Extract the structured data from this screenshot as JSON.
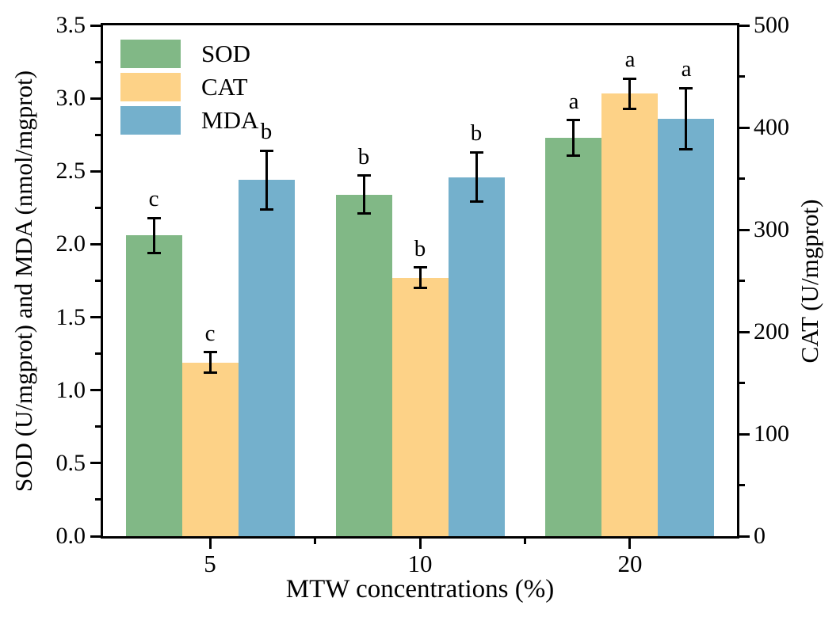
{
  "chart_data": {
    "type": "bar",
    "title": "",
    "categories": [
      "5",
      "10",
      "20"
    ],
    "xlabel": "MTW concentrations (%)",
    "ylabel_left": "SOD (U/mgprot) and MDA (nmol/mgprot)",
    "ylabel_right": "CAT (U/mgprot)",
    "ylim_left": [
      0,
      3.5
    ],
    "ylim_right": [
      0,
      500
    ],
    "yticks_left": [
      "0.0",
      "0.5",
      "1.0",
      "1.5",
      "2.0",
      "2.5",
      "3.0",
      "3.5"
    ],
    "yticks_right": [
      "0",
      "100",
      "200",
      "300",
      "400",
      "500"
    ],
    "grid": false,
    "legend": {
      "position": "top-left-inside",
      "entries": [
        "SOD",
        "CAT",
        "MDA"
      ]
    },
    "series": [
      {
        "name": "SOD",
        "axis": "left",
        "color": "#81B886",
        "values": [
          2.06,
          2.34,
          2.73
        ],
        "errors": [
          0.12,
          0.13,
          0.12
        ],
        "letters": [
          "c",
          "b",
          "a"
        ]
      },
      {
        "name": "CAT",
        "axis": "right",
        "color": "#FDD287",
        "values": [
          170,
          253,
          433
        ],
        "errors": [
          10,
          10,
          15
        ],
        "letters": [
          "c",
          "b",
          "a"
        ]
      },
      {
        "name": "MDA",
        "axis": "left",
        "color": "#74B0CC",
        "values": [
          2.44,
          2.46,
          2.86
        ],
        "errors": [
          0.2,
          0.17,
          0.21
        ],
        "letters": [
          "b",
          "b",
          "a"
        ]
      }
    ],
    "style": {
      "axis_color": "#000000",
      "error_bar_color": "#000000",
      "text_color": "#000000"
    }
  }
}
